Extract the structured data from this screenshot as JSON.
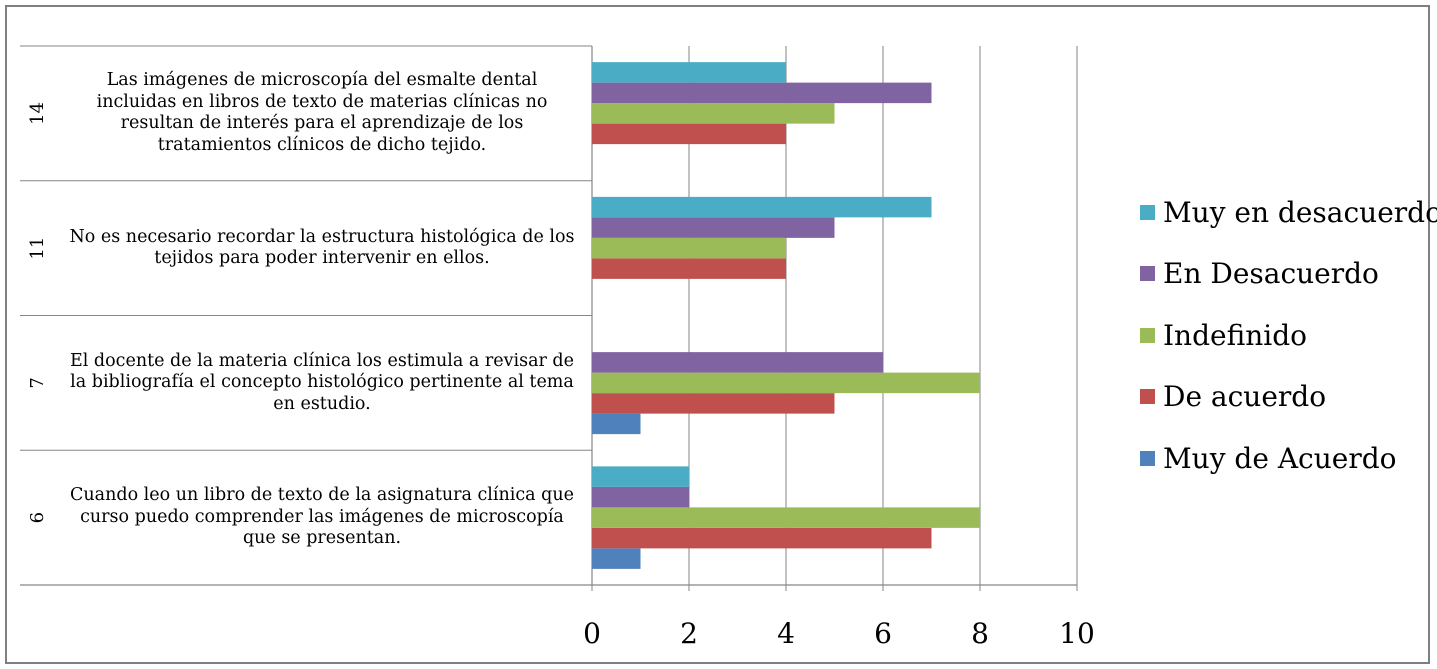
{
  "chart_data": {
    "type": "bar",
    "orientation": "horizontal",
    "categories": [
      "6",
      "7",
      "11",
      "14"
    ],
    "questions": [
      "Cuando leo un libro de texto de la asignatura clínica que curso puedo comprender las imágenes de microscopía que se presentan.",
      "El docente de la materia clínica los estimula a revisar de la bibliografía el concepto histológico pertinente al tema en estudio.",
      "No es necesario recordar la estructura histológica de los tejidos para poder intervenir en ellos.",
      "Las imágenes de microscopía del esmalte dental incluidas en libros de texto de materias clínicas no resultan de interés para el aprendizaje de los tratamientos clínicos de dicho tejido."
    ],
    "series": [
      {
        "name": "Muy de Acuerdo",
        "color": "#4f81bd",
        "values": [
          1,
          1,
          0,
          0
        ]
      },
      {
        "name": "De acuerdo",
        "color": "#c0504d",
        "values": [
          7,
          5,
          4,
          4
        ]
      },
      {
        "name": "Indefinido",
        "color": "#9bbb59",
        "values": [
          8,
          8,
          4,
          5
        ]
      },
      {
        "name": "En Desacuerdo",
        "color": "#8064a2",
        "values": [
          2,
          6,
          5,
          7
        ]
      },
      {
        "name": "Muy en desacuerdo",
        "color": "#4bacc6",
        "values": [
          2,
          0,
          7,
          4
        ]
      }
    ],
    "xlim": [
      0,
      10
    ],
    "xticks": [
      "0",
      "2",
      "4",
      "6",
      "8",
      "10"
    ],
    "grid": true,
    "legend_position": "right"
  }
}
